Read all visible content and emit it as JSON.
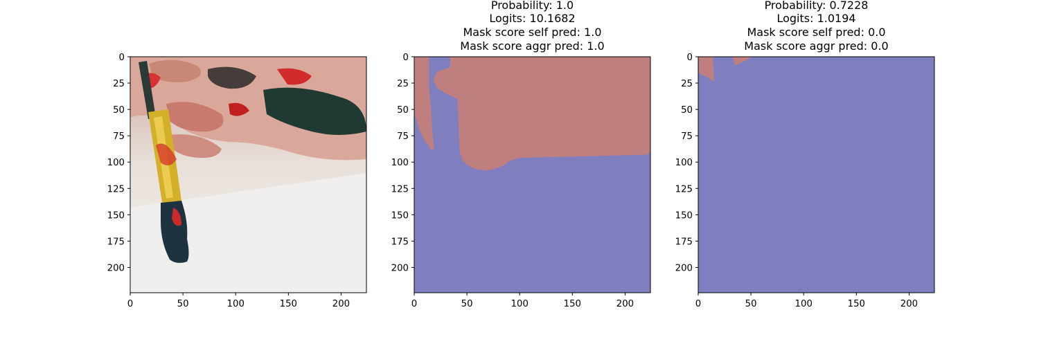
{
  "colors": {
    "mask_fg": "#bf7f7f",
    "mask_bg": "#7f7fbf",
    "axis": "#000000"
  },
  "chart_data": [
    {
      "type": "image",
      "image_description": "photo of a paint brush held by paint-covered fingers",
      "title_lines": [],
      "xticks": [
        0,
        50,
        100,
        150,
        200
      ],
      "yticks": [
        0,
        25,
        50,
        75,
        100,
        125,
        150,
        175,
        200
      ],
      "xlim": [
        0,
        224
      ],
      "ylim": [
        224,
        0
      ]
    },
    {
      "type": "heatmap",
      "title_lines": [
        "Probability: 1.0",
        "Logits: 10.1682",
        "Mask score self pred: 1.0",
        "Mask score aggr pred: 1.0"
      ],
      "xticks": [
        0,
        50,
        100,
        150,
        200
      ],
      "yticks": [
        0,
        25,
        50,
        75,
        100,
        125,
        150,
        175,
        200
      ],
      "xlim": [
        0,
        224
      ],
      "ylim": [
        224,
        0
      ],
      "classes": [
        "foreground",
        "background"
      ],
      "foreground_regions": [
        [
          [
            0,
            0
          ],
          [
            14,
            0
          ],
          [
            14,
            30
          ],
          [
            16,
            50
          ],
          [
            17,
            70
          ],
          [
            18,
            80
          ],
          [
            19,
            88
          ],
          [
            16,
            88
          ],
          [
            14,
            85
          ],
          [
            10,
            80
          ],
          [
            5,
            70
          ],
          [
            1,
            56
          ],
          [
            0,
            50
          ]
        ],
        [
          [
            34,
            0
          ],
          [
            224,
            0
          ],
          [
            224,
            91
          ],
          [
            220,
            93
          ],
          [
            180,
            94
          ],
          [
            140,
            95
          ],
          [
            100,
            96
          ],
          [
            90,
            99
          ],
          [
            85,
            103
          ],
          [
            78,
            106
          ],
          [
            70,
            108
          ],
          [
            60,
            107
          ],
          [
            52,
            104
          ],
          [
            46,
            99
          ],
          [
            43,
            90
          ],
          [
            42,
            60
          ],
          [
            41,
            40
          ],
          [
            30,
            35
          ],
          [
            22,
            30
          ],
          [
            18,
            22
          ],
          [
            22,
            14
          ],
          [
            28,
            12
          ],
          [
            34,
            10
          ]
        ]
      ]
    },
    {
      "type": "heatmap",
      "title_lines": [
        "Probability: 0.7228",
        "Logits: 1.0194",
        "Mask score self pred: 0.0",
        "Mask score aggr pred: 0.0"
      ],
      "xticks": [
        0,
        50,
        100,
        150,
        200
      ],
      "yticks": [
        0,
        25,
        50,
        75,
        100,
        125,
        150,
        175,
        200
      ],
      "xlim": [
        0,
        224
      ],
      "ylim": [
        224,
        0
      ],
      "classes": [
        "foreground",
        "background"
      ],
      "foreground_regions": [
        [
          [
            0,
            0
          ],
          [
            14,
            0
          ],
          [
            15,
            23
          ],
          [
            12,
            22
          ],
          [
            8,
            19
          ],
          [
            3,
            17
          ],
          [
            0,
            15
          ]
        ],
        [
          [
            33,
            0
          ],
          [
            50,
            0
          ],
          [
            46,
            3
          ],
          [
            40,
            6
          ],
          [
            36,
            8
          ],
          [
            34,
            6
          ]
        ]
      ]
    }
  ]
}
